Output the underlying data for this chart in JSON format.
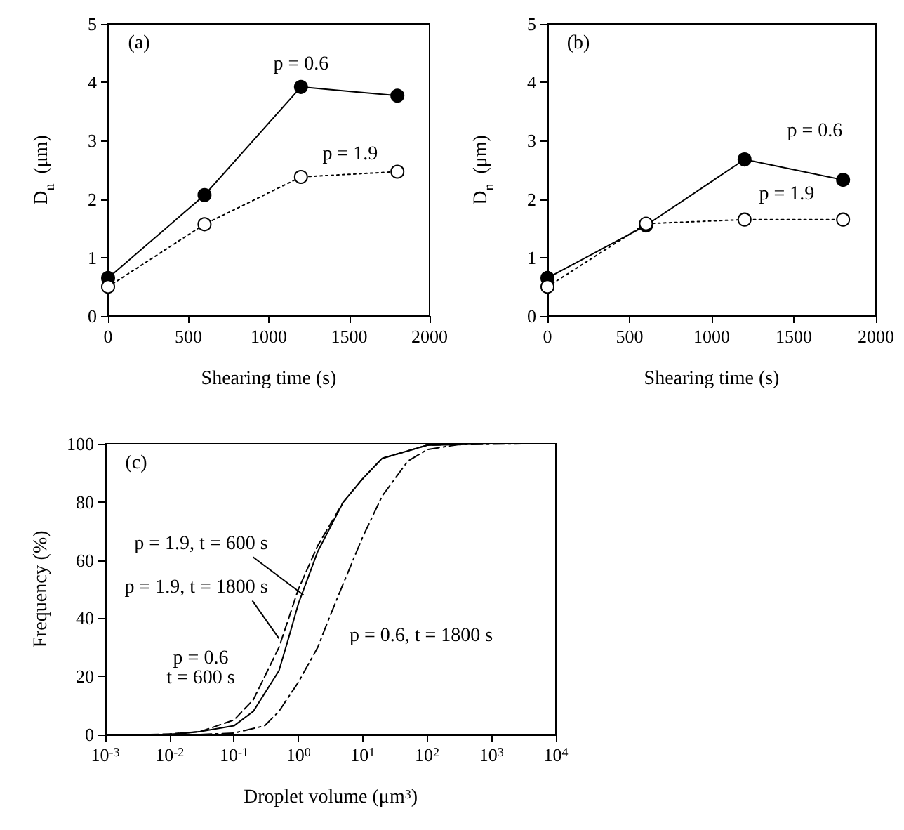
{
  "chart_data": [
    {
      "type": "line",
      "xlabel": "Shearing time (s)",
      "ylabel": "D$_{n}$  (μm)",
      "xlim": [
        0,
        2000
      ],
      "xticks": [
        0,
        500,
        1000,
        1500,
        2000
      ],
      "ylim": [
        0,
        5
      ],
      "yticks": [
        0,
        1,
        2,
        3,
        4,
        5
      ],
      "grid": false,
      "series": [
        {
          "x": [
            0,
            600,
            1200,
            1800
          ],
          "values": [
            0.65,
            2.07,
            3.92,
            3.77
          ],
          "color": "#000000",
          "marker": "circle",
          "line_style": "solid"
        },
        {
          "x": [
            0,
            600,
            1200,
            1800
          ],
          "values": [
            0.5,
            1.57,
            2.38,
            2.47
          ],
          "color": "#000000",
          "marker": "circle",
          "line_style": "dotted"
        }
      ],
      "annotations": [
        "(a)",
        {
          "text": "p = 0.6",
          "x": 1200,
          "y": 3.92
        },
        {
          "text": "p = 1.9",
          "x": 1200,
          "y": 2.38
        }
      ]
    },
    {
      "type": "line",
      "xlabel": "Shearing time (s)",
      "ylabel": "D$_{n}$  (μm)",
      "xlim": [
        0,
        2000
      ],
      "xticks": [
        0,
        500,
        1000,
        1500,
        2000
      ],
      "ylim": [
        0,
        5
      ],
      "yticks": [
        0,
        1,
        2,
        3,
        4,
        5
      ],
      "grid": false,
      "series": [
        {
          "x": [
            0,
            600,
            1200,
            1800
          ],
          "values": [
            0.65,
            1.55,
            2.68,
            2.33
          ],
          "color": "#000000",
          "marker": "circle",
          "line_style": "solid"
        },
        {
          "x": [
            0,
            600,
            1200,
            1800
          ],
          "values": [
            0.5,
            1.58,
            1.65,
            1.65
          ],
          "color": "#000000",
          "marker": "circle",
          "line_style": "dotted"
        }
      ],
      "annotations": [
        "(b)",
        {
          "text": "p = 0.6",
          "x": 1200,
          "y": 2.68
        },
        {
          "text": "p = 1.9",
          "x": 1200,
          "y": 1.65
        }
      ]
    },
    {
      "type": "line",
      "xlabel": "Droplet volume (μm$^{3}$)",
      "ylabel": "Frequency (%)",
      "log": "x",
      "xlim": [
        0.001,
        10000
      ],
      "xticks": [
        {
          "value": 0.001,
          "label": "10$^{-3}$"
        },
        {
          "value": 0.01,
          "label": "10$^{-2}$"
        },
        {
          "value": 0.1,
          "label": "10$^{-1}$"
        },
        {
          "value": 1,
          "label": "10$^{0}$"
        },
        {
          "value": 10,
          "label": "10$^{1}$"
        },
        {
          "value": 100,
          "label": "10$^{2}$"
        },
        {
          "value": 1000,
          "label": "10$^{3}$"
        },
        {
          "value": 10000,
          "label": "10$^{4}$"
        }
      ],
      "ylim": [
        0,
        100
      ],
      "yticks": [
        0,
        20,
        40,
        60,
        80,
        100
      ],
      "grid": false,
      "marker": "none",
      "series": [
        {
          "x": [
            0.005,
            0.01,
            0.03,
            0.1,
            0.2,
            0.5,
            1,
            2,
            5,
            10,
            20,
            100,
            500
          ],
          "values": [
            0,
            0.2,
            1,
            5,
            12,
            30,
            50,
            65,
            80,
            88,
            95,
            99.5,
            100
          ],
          "color": "#000000",
          "line_style": "dashed"
        },
        {
          "x": [
            0.008,
            0.015,
            0.03,
            0.1,
            0.2,
            0.5,
            0.7,
            1,
            2,
            5,
            10,
            20,
            100,
            1000
          ],
          "values": [
            0,
            0.3,
            1,
            3,
            8,
            22,
            33,
            45,
            63,
            80,
            88,
            95,
            99.5,
            100
          ],
          "color": "#000000",
          "line_style": "solid"
        },
        {
          "x": [
            0.03,
            0.1,
            0.3,
            0.5,
            1,
            2,
            3,
            5,
            10,
            20,
            50,
            100,
            300,
            3000
          ],
          "values": [
            0,
            0.5,
            3,
            8,
            18,
            30,
            40,
            52,
            68,
            82,
            94,
            98,
            99.7,
            100
          ],
          "color": "#000000",
          "line_style": "dashdot"
        }
      ],
      "annotations": [
        "(c)",
        {
          "text": "p = 1.9, t = 600 s",
          "x": 1.2,
          "y": 48
        },
        {
          "text": "p = 1.9, t = 1800 s",
          "x": 0.5,
          "y": 33
        },
        "p = 0.6\nt = 600 s",
        "p = 0.6, t = 1800 s"
      ]
    }
  ]
}
